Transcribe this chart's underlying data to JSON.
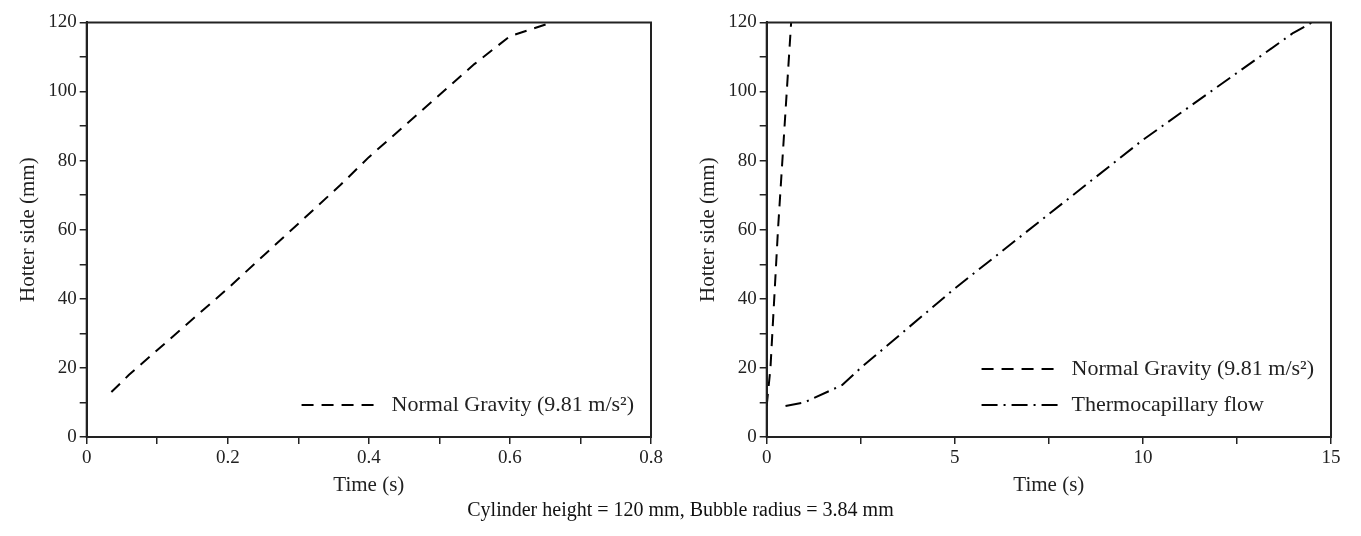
{
  "chart_data": [
    {
      "type": "line",
      "xlabel": "Time (s)",
      "ylabel": "Hotter side (mm)",
      "legend": "bottom right",
      "grid": false,
      "xlim": [
        0,
        0.8
      ],
      "xticks": [
        0,
        {
          "value": 0.1,
          "label": null
        },
        {
          "value": 0.2,
          "label": "0.2"
        },
        {
          "value": 0.3,
          "label": null
        },
        {
          "value": 0.4,
          "label": "0.4"
        },
        {
          "value": 0.5,
          "label": null
        },
        {
          "value": 0.6,
          "label": "0.6"
        },
        {
          "value": 0.7,
          "label": null
        },
        {
          "value": 0.8,
          "label": "0.8"
        }
      ],
      "ylim": [
        0,
        120
      ],
      "yticks": [
        0,
        {
          "value": 10,
          "label": null
        },
        20,
        {
          "value": 30,
          "label": null
        },
        40,
        {
          "value": 50,
          "label": null
        },
        60,
        {
          "value": 70,
          "label": null
        },
        80,
        {
          "value": 90,
          "label": null
        },
        100,
        {
          "value": 110,
          "label": null
        },
        120
      ],
      "annotations": [
        "Cylinder height = 120 mm, Bubble radius = 3.84 mm"
      ],
      "series": [
        {
          "name": "Normal Gravity (9.81 m/s²)",
          "color": "#000000",
          "line_style": "dashed",
          "x": [
            0.035,
            0.06,
            0.2,
            0.36,
            0.4,
            0.55,
            0.6,
            0.66
          ],
          "values": [
            13,
            18,
            43,
            73,
            81,
            108,
            116,
            120
          ]
        }
      ]
    },
    {
      "type": "line",
      "xlabel": "Time (s)",
      "ylabel": "Hotter side (mm)",
      "legend": "bottom right",
      "grid": false,
      "xlim": [
        0,
        15
      ],
      "xticks": [
        0,
        {
          "value": 2.5,
          "label": null
        },
        5,
        {
          "value": 7.5,
          "label": null
        },
        10,
        {
          "value": 12.5,
          "label": null
        },
        15
      ],
      "ylim": [
        0,
        120
      ],
      "yticks": [
        0,
        {
          "value": 10,
          "label": null
        },
        20,
        {
          "value": 30,
          "label": null
        },
        40,
        {
          "value": 50,
          "label": null
        },
        60,
        {
          "value": 70,
          "label": null
        },
        80,
        {
          "value": 90,
          "label": null
        },
        100,
        {
          "value": 110,
          "label": null
        },
        120
      ],
      "series": [
        {
          "name": "Normal Gravity (9.81 m/s²)",
          "color": "#000000",
          "line_style": "dashed",
          "x": [
            0,
            0.1,
            0.3,
            0.65
          ],
          "values": [
            9,
            20,
            60,
            120
          ]
        },
        {
          "name": "Thermocapillary flow",
          "color": "#000000",
          "line_style": "dashdot",
          "x": [
            0.5,
            1,
            2,
            2.5,
            5,
            10,
            14,
            14.5
          ],
          "values": [
            9,
            10,
            15,
            20,
            43,
            86,
            117,
            120
          ]
        }
      ]
    }
  ]
}
